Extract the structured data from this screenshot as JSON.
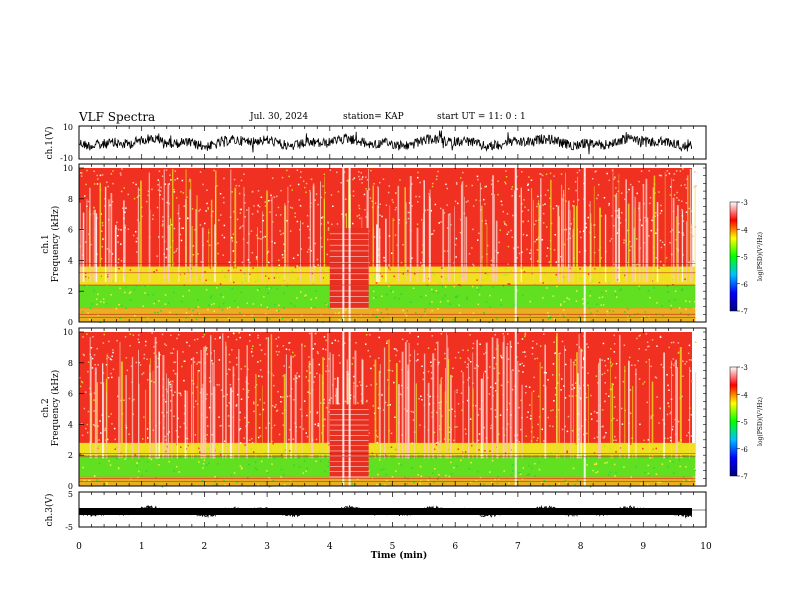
{
  "header": {
    "title": "VLF Spectra",
    "date": "Jul. 30, 2024",
    "station": "station= KAP",
    "start": "start  UT =  11: 0  : 1"
  },
  "chart_data": [
    {
      "type": "line",
      "panel": "ch1-waveform",
      "ylabel": "ch.1(V)",
      "ylim": [
        -10,
        10
      ],
      "yticks": [
        "10",
        "-10"
      ],
      "xlim": [
        0,
        10
      ],
      "color": "#000000"
    },
    {
      "type": "heatmap",
      "panel": "ch1-spectrogram",
      "ylabel": "ch.1\nFrequency (kHz)",
      "ylim": [
        0,
        10
      ],
      "yticks": [
        "0",
        "2",
        "4",
        "6",
        "8",
        "10"
      ],
      "xlim": [
        0,
        9.83
      ],
      "colorbar": {
        "label": "log(PSD)(V²/Hz)",
        "range": [
          -7,
          -3
        ],
        "ticks": [
          "-3",
          "-4",
          "-5",
          "-6",
          "-7"
        ],
        "colors": [
          "#000080",
          "#0000ff",
          "#00c0ff",
          "#00ff00",
          "#ffff00",
          "#ff0000",
          "#ffffff"
        ]
      }
    },
    {
      "type": "heatmap",
      "panel": "ch2-spectrogram",
      "ylabel": "ch.2\nFrequency (kHz)",
      "ylim": [
        0,
        10
      ],
      "yticks": [
        "0",
        "2",
        "4",
        "6",
        "8",
        "10"
      ],
      "xlim": [
        0,
        9.83
      ],
      "colorbar": {
        "label": "log(PSD)(V²/Hz)",
        "range": [
          -7,
          -3
        ],
        "ticks": [
          "-3",
          "-4",
          "-5",
          "-6",
          "-7"
        ],
        "colors": [
          "#000080",
          "#0000ff",
          "#00c0ff",
          "#00ff00",
          "#ffff00",
          "#ff0000",
          "#ffffff"
        ]
      }
    },
    {
      "type": "line",
      "panel": "ch3-waveform",
      "ylabel": "ch.3(V)",
      "ylim": [
        -5,
        5
      ],
      "yticks": [
        "5",
        "-5"
      ],
      "xlim": [
        0,
        10
      ],
      "xlabel": "Time (min)",
      "xticks": [
        "0",
        "1",
        "2",
        "3",
        "4",
        "5",
        "6",
        "7",
        "8",
        "9",
        "10"
      ],
      "color": "#000000"
    }
  ]
}
